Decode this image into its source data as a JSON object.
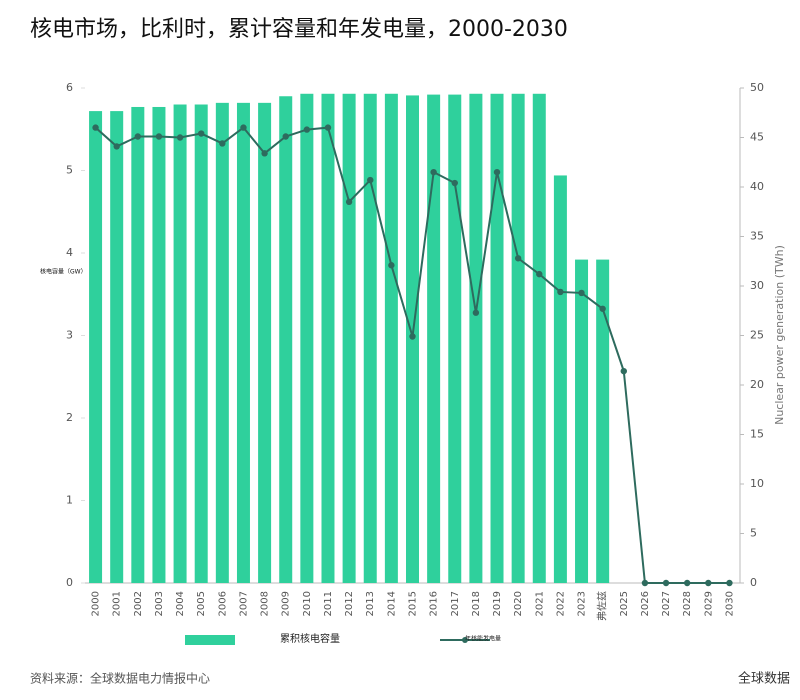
{
  "chart_data": {
    "type": "bar-line",
    "title": "核电市场，比利时，累计容量和年发电量，2000-2030",
    "y_label": "核电容量（GW）",
    "y2_label": "Nuclear power generation (TWh)",
    "categories": [
      "2000",
      "2001",
      "2002",
      "2003",
      "2004",
      "2005",
      "2006",
      "2007",
      "2008",
      "2009",
      "2010",
      "2011",
      "2012",
      "2013",
      "2014",
      "2015",
      "2016",
      "2017",
      "2018",
      "2019",
      "2020",
      "2021",
      "2022",
      "2023",
      "弗佐兹",
      "2025",
      "2026",
      "2027",
      "2028",
      "2029",
      "2030"
    ],
    "series": [
      {
        "name": "累积核电容量",
        "type": "bar",
        "color": "#2fd09c",
        "values": [
          5.72,
          5.72,
          5.77,
          5.77,
          5.8,
          5.8,
          5.82,
          5.82,
          5.82,
          5.9,
          5.93,
          5.93,
          5.93,
          5.93,
          5.93,
          5.91,
          5.92,
          5.92,
          5.93,
          5.93,
          5.93,
          5.93,
          4.94,
          3.92,
          3.92,
          null,
          null,
          null,
          null,
          null,
          null
        ]
      },
      {
        "name": "年核能发电量",
        "type": "line",
        "axis": "y2",
        "color": "#2e6b5e",
        "values": [
          46.0,
          44.1,
          45.1,
          45.1,
          45.0,
          45.4,
          44.4,
          46.0,
          43.4,
          45.1,
          45.8,
          46.0,
          38.5,
          40.7,
          32.1,
          24.9,
          41.5,
          40.4,
          27.3,
          41.5,
          32.8,
          31.2,
          29.4,
          29.3,
          27.7,
          21.4,
          0,
          0,
          0,
          0,
          0
        ]
      }
    ],
    "ylim": [
      0,
      6
    ],
    "yticks": [
      0,
      1,
      2,
      3,
      4,
      5,
      6
    ],
    "y2lim": [
      0,
      50
    ],
    "y2ticks": [
      0,
      5,
      10,
      15,
      20,
      25,
      30,
      35,
      40,
      45,
      50
    ],
    "source": "资料来源：全球数据电力情报中心",
    "brand": "全球数据"
  }
}
